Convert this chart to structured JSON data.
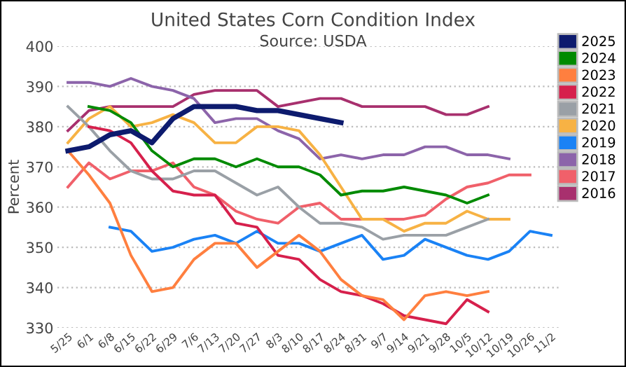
{
  "chart_data": {
    "type": "line",
    "title": "United States Corn Condition Index",
    "subtitle": "Source: USDA",
    "ylabel": "Percent",
    "categories": [
      "5/25",
      "6/1",
      "6/8",
      "6/15",
      "6/22",
      "6/29",
      "7/6",
      "7/13",
      "7/20",
      "7/27",
      "8/3",
      "8/10",
      "8/17",
      "8/24",
      "8/31",
      "9/7",
      "9/14",
      "9/21",
      "9/28",
      "10/5",
      "10/12",
      "10/19",
      "10/26",
      "11/2"
    ],
    "ylim": [
      330,
      400
    ],
    "yticks": [
      330,
      340,
      350,
      360,
      370,
      380,
      390,
      400
    ],
    "grid": "y",
    "legend": "right",
    "marker": "none",
    "line_style": "solid",
    "series": [
      {
        "name": "2025",
        "color": "#0d1b6e",
        "values": [
          374,
          375,
          378,
          379,
          376,
          382,
          385,
          385,
          385,
          384,
          384,
          383,
          382,
          381,
          null,
          null,
          null,
          null,
          null,
          null,
          null,
          null,
          null,
          null
        ]
      },
      {
        "name": "2024",
        "color": "#008a00",
        "values": [
          null,
          385,
          384,
          381,
          374,
          370,
          372,
          372,
          370,
          372,
          370,
          370,
          368,
          363,
          364,
          364,
          365,
          364,
          363,
          361,
          363,
          null,
          null,
          null
        ]
      },
      {
        "name": "2023",
        "color": "#ff7f3f",
        "values": [
          374,
          368,
          361,
          348,
          339,
          340,
          347,
          351,
          351,
          345,
          349,
          353,
          349,
          342,
          338,
          337,
          332,
          338,
          339,
          338,
          339,
          null,
          null,
          null
        ]
      },
      {
        "name": "2022",
        "color": "#d6204c",
        "values": [
          null,
          380,
          379,
          376,
          369,
          364,
          363,
          363,
          356,
          355,
          348,
          347,
          342,
          339,
          338,
          336,
          333,
          332,
          331,
          337,
          334,
          null,
          null,
          null
        ]
      },
      {
        "name": "2021",
        "color": "#9aa0a6",
        "values": [
          385,
          380,
          374,
          369,
          367,
          367,
          369,
          369,
          366,
          363,
          365,
          360,
          356,
          356,
          355,
          352,
          353,
          353,
          353,
          355,
          357,
          null,
          null,
          null
        ]
      },
      {
        "name": "2020",
        "color": "#f7b244",
        "values": [
          376,
          382,
          385,
          380,
          381,
          383,
          381,
          376,
          376,
          380,
          380,
          379,
          373,
          365,
          357,
          357,
          354,
          356,
          356,
          359,
          357,
          357,
          null,
          null
        ]
      },
      {
        "name": "2019",
        "color": "#1a82f5",
        "values": [
          null,
          null,
          355,
          354,
          349,
          350,
          352,
          353,
          351,
          354,
          351,
          351,
          349,
          351,
          353,
          347,
          348,
          352,
          350,
          348,
          347,
          349,
          354,
          353
        ]
      },
      {
        "name": "2018",
        "color": "#8c64aa",
        "values": [
          391,
          391,
          390,
          392,
          390,
          389,
          387,
          381,
          382,
          382,
          379,
          377,
          372,
          373,
          372,
          373,
          373,
          375,
          375,
          373,
          373,
          372,
          null,
          null
        ]
      },
      {
        "name": "2017",
        "color": "#f0606a",
        "values": [
          365,
          371,
          367,
          369,
          369,
          371,
          365,
          363,
          359,
          357,
          356,
          360,
          361,
          357,
          357,
          357,
          357,
          358,
          362,
          365,
          366,
          368,
          368,
          null
        ]
      },
      {
        "name": "2016",
        "color": "#a8306e",
        "values": [
          379,
          384,
          385,
          385,
          385,
          385,
          388,
          389,
          389,
          389,
          385,
          386,
          387,
          387,
          385,
          385,
          385,
          385,
          383,
          383,
          385,
          null,
          null,
          null
        ]
      }
    ]
  }
}
